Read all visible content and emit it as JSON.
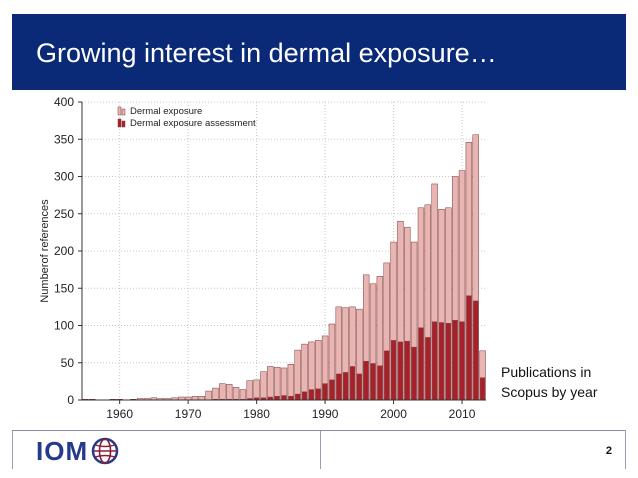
{
  "slide": {
    "title": "Growing interest in dermal exposure…",
    "caption": "Publications in Scopus by year",
    "page_number": "2",
    "logo_text": "IOM"
  },
  "colors": {
    "title_bg": "#0a2a77",
    "dermal_exposure": "#e9b5b3",
    "assessment": "#a8202a",
    "bar_stroke": "#7a3b3b"
  },
  "chart_data": {
    "type": "bar",
    "title": "",
    "xlabel": "",
    "ylabel": "Numberof references",
    "ylim": [
      0,
      400
    ],
    "yticks": [
      0,
      50,
      100,
      150,
      200,
      250,
      300,
      350,
      400
    ],
    "xticks": [
      1960,
      1970,
      1980,
      1990,
      2000,
      2010
    ],
    "xlim": [
      1954.5,
      2013.5
    ],
    "legend": [
      "Dermal exposure",
      "Dermal exposure assessment"
    ],
    "legend_position": "top-left",
    "grid": true,
    "x": [
      1955,
      1956,
      1957,
      1958,
      1959,
      1960,
      1961,
      1962,
      1963,
      1964,
      1965,
      1966,
      1967,
      1968,
      1969,
      1970,
      1971,
      1972,
      1973,
      1974,
      1975,
      1976,
      1977,
      1978,
      1979,
      1980,
      1981,
      1982,
      1983,
      1984,
      1985,
      1986,
      1987,
      1988,
      1989,
      1990,
      1991,
      1992,
      1993,
      1994,
      1995,
      1996,
      1997,
      1998,
      1999,
      2000,
      2001,
      2002,
      2003,
      2004,
      2005,
      2006,
      2007,
      2008,
      2009,
      2010,
      2011,
      2012,
      2013
    ],
    "series": [
      {
        "name": "Dermal exposure",
        "values": [
          1,
          1,
          0,
          0,
          1,
          1,
          0,
          1,
          2,
          2,
          3,
          2,
          2,
          3,
          4,
          4,
          5,
          5,
          12,
          16,
          22,
          21,
          17,
          14,
          26,
          27,
          38,
          45,
          44,
          43,
          48,
          67,
          75,
          78,
          80,
          86,
          102,
          125,
          124,
          125,
          122,
          168,
          156,
          166,
          184,
          212,
          240,
          232,
          212,
          258,
          262,
          290,
          256,
          258,
          300,
          308,
          346,
          356,
          66
        ]
      },
      {
        "name": "Dermal exposure assessment",
        "values": [
          0,
          0,
          0,
          0,
          0,
          0,
          0,
          0,
          0,
          0,
          0,
          0,
          0,
          0,
          0,
          0,
          0,
          0,
          0,
          1,
          1,
          1,
          1,
          1,
          2,
          3,
          3,
          4,
          5,
          6,
          5,
          8,
          11,
          14,
          15,
          22,
          27,
          35,
          37,
          45,
          35,
          52,
          49,
          46,
          66,
          80,
          78,
          79,
          71,
          97,
          84,
          105,
          104,
          103,
          107,
          105,
          140,
          133,
          30
        ]
      }
    ]
  }
}
